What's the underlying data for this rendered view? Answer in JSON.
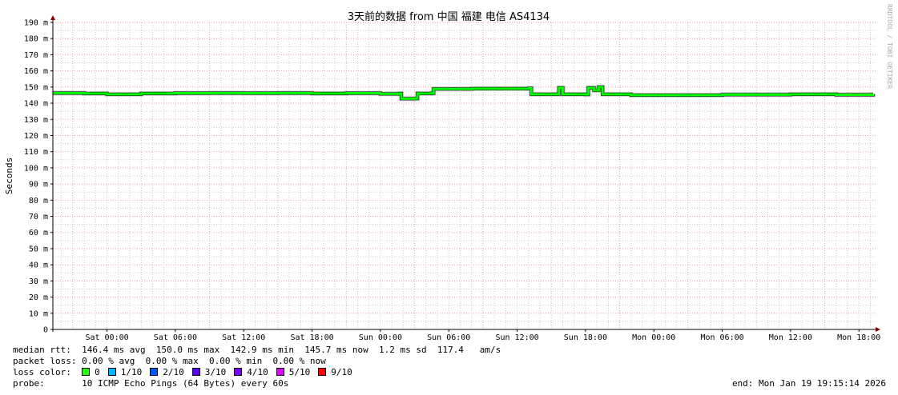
{
  "chart_data": {
    "type": "line",
    "title": "3天前的数据 from 中国 福建 电信 AS4134",
    "ylabel": "Seconds",
    "ylim": [
      0,
      190
    ],
    "y_unit": "m",
    "yticks": [
      "0",
      "10 m",
      "20 m",
      "30 m",
      "40 m",
      "50 m",
      "60 m",
      "70 m",
      "80 m",
      "90 m",
      "100 m",
      "110 m",
      "120 m",
      "130 m",
      "140 m",
      "150 m",
      "160 m",
      "170 m",
      "180 m",
      "190 m"
    ],
    "xlim": [
      "2026-01-16 19:15",
      "2026-01-19 19:15"
    ],
    "xticks": [
      {
        "t": "2026-01-17 00:00",
        "label": "Sat 00:00"
      },
      {
        "t": "2026-01-17 06:00",
        "label": "Sat 06:00"
      },
      {
        "t": "2026-01-17 12:00",
        "label": "Sat 12:00"
      },
      {
        "t": "2026-01-17 18:00",
        "label": "Sat 18:00"
      },
      {
        "t": "2026-01-18 00:00",
        "label": "Sun 00:00"
      },
      {
        "t": "2026-01-18 06:00",
        "label": "Sun 06:00"
      },
      {
        "t": "2026-01-18 12:00",
        "label": "Sun 12:00"
      },
      {
        "t": "2026-01-18 18:00",
        "label": "Sun 18:00"
      },
      {
        "t": "2026-01-19 00:00",
        "label": "Mon 00:00"
      },
      {
        "t": "2026-01-19 06:00",
        "label": "Mon 06:00"
      },
      {
        "t": "2026-01-19 12:00",
        "label": "Mon 12:00"
      },
      {
        "t": "2026-01-19 18:00",
        "label": "Mon 18:00"
      }
    ],
    "grid": true,
    "series": [
      {
        "color": "#00ff00",
        "points": [
          [
            "2026-01-16 19:15",
            146.3
          ],
          [
            "2026-01-16 22:00",
            146.0
          ],
          [
            "2026-01-17 00:00",
            145.5
          ],
          [
            "2026-01-17 03:00",
            146.0
          ],
          [
            "2026-01-17 06:00",
            146.2
          ],
          [
            "2026-01-17 09:00",
            146.3
          ],
          [
            "2026-01-17 12:00",
            146.2
          ],
          [
            "2026-01-17 15:00",
            146.3
          ],
          [
            "2026-01-17 18:00",
            146.0
          ],
          [
            "2026-01-17 21:00",
            146.2
          ],
          [
            "2026-01-18 00:00",
            145.8
          ],
          [
            "2026-01-18 01:45",
            146.0
          ],
          [
            "2026-01-18 01:50",
            142.8
          ],
          [
            "2026-01-18 03:00",
            142.9
          ],
          [
            "2026-01-18 03:15",
            146.0
          ],
          [
            "2026-01-18 04:30",
            146.2
          ],
          [
            "2026-01-18 04:40",
            148.8
          ],
          [
            "2026-01-18 08:00",
            149.0
          ],
          [
            "2026-01-18 11:00",
            149.0
          ],
          [
            "2026-01-18 13:00",
            149.2
          ],
          [
            "2026-01-18 13:15",
            145.5
          ],
          [
            "2026-01-18 15:30",
            145.6
          ],
          [
            "2026-01-18 15:40",
            149.5
          ],
          [
            "2026-01-18 16:00",
            145.5
          ],
          [
            "2026-01-18 18:00",
            145.4
          ],
          [
            "2026-01-18 18:15",
            149.5
          ],
          [
            "2026-01-18 18:45",
            148.0
          ],
          [
            "2026-01-18 19:10",
            150.0
          ],
          [
            "2026-01-18 19:30",
            145.5
          ],
          [
            "2026-01-18 22:00",
            145.0
          ],
          [
            "2026-01-19 00:00",
            145.0
          ],
          [
            "2026-01-19 06:00",
            145.3
          ],
          [
            "2026-01-19 12:00",
            145.5
          ],
          [
            "2026-01-19 16:00",
            145.2
          ],
          [
            "2026-01-19 19:15",
            145.7
          ]
        ]
      }
    ]
  },
  "watermark": "RRDTOOL / TOBI OETIKER",
  "legend": {
    "median_label": "median rtt:",
    "median_values": "146.4 ms avg  150.0 ms max  142.9 ms min  145.7 ms now  1.2 ms sd  117.4   am/s",
    "loss_label": "packet loss:",
    "loss_values": "0.00 % avg  0.00 % max  0.00 % min  0.00 % now",
    "color_label": "loss color:",
    "loss_colors": [
      {
        "label": "0",
        "color": "#26ff00"
      },
      {
        "label": "1/10",
        "color": "#00b8ff"
      },
      {
        "label": "2/10",
        "color": "#0059ff"
      },
      {
        "label": "3/10",
        "color": "#5e00ff"
      },
      {
        "label": "4/10",
        "color": "#7e00ff"
      },
      {
        "label": "5/10",
        "color": "#dd00ff"
      },
      {
        "label": "9/10",
        "color": "#ff0000"
      }
    ],
    "probe_label": "probe:",
    "probe_value": "10 ICMP Echo Pings (64 Bytes) every 60s",
    "end": "end: Mon Jan 19 19:15:14 2026"
  }
}
